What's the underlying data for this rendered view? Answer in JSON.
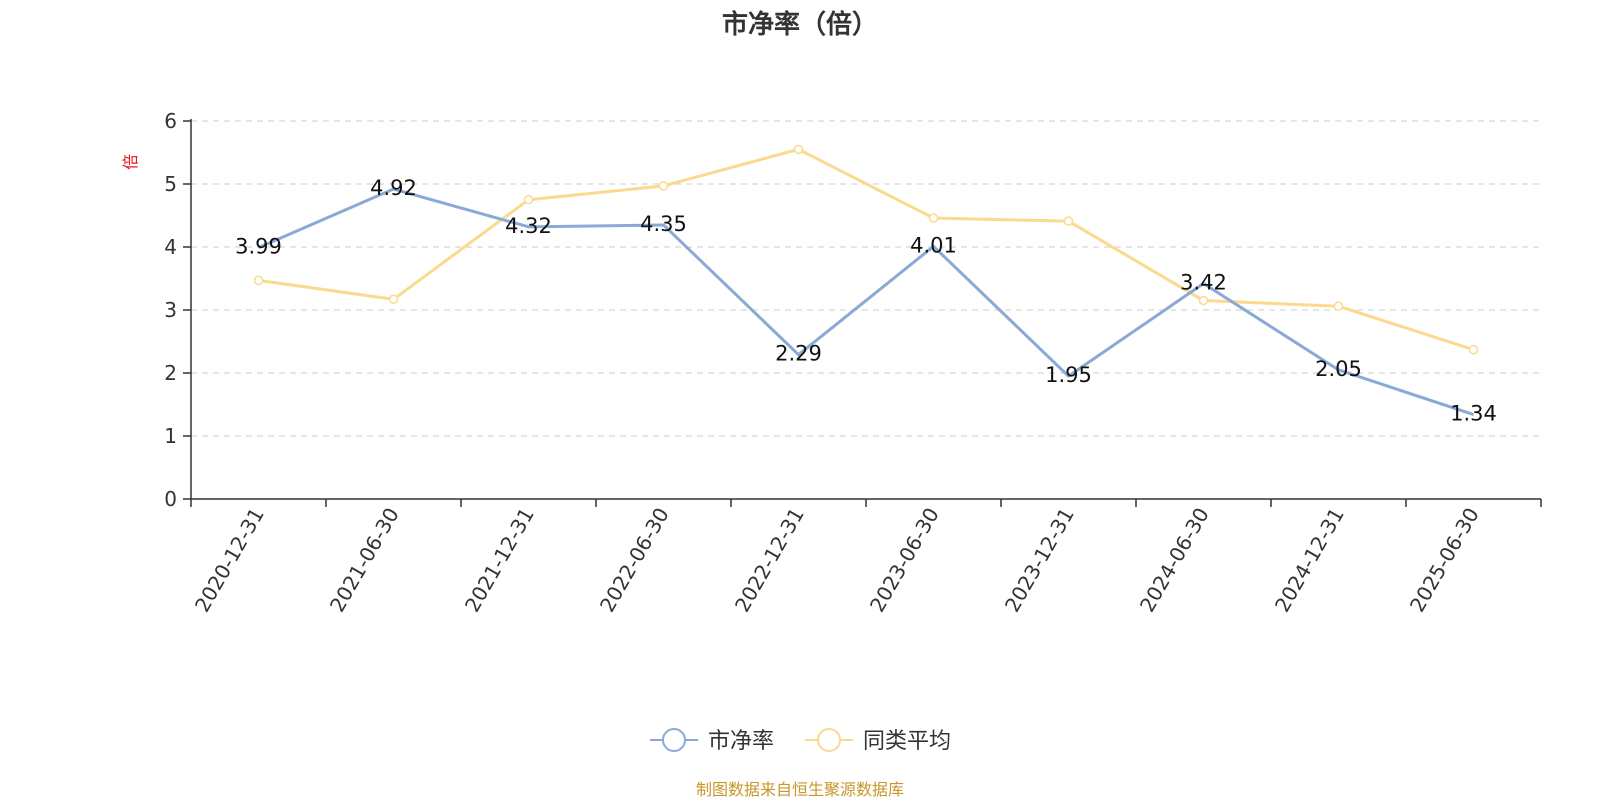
{
  "colors": {
    "series1": "#8aa9d6",
    "series2": "#fbd98f",
    "grid": "#cccccc",
    "axis": "#333333",
    "unit": "#e8141e",
    "source": "#c8962a"
  },
  "chart_data": {
    "type": "line",
    "title": "市净率（倍）",
    "y_unit": "倍",
    "ylim": [
      0,
      6
    ],
    "yticks": [
      0,
      1,
      2,
      3,
      4,
      5,
      6
    ],
    "grid": true,
    "legend_position": "bottom-center",
    "categories": [
      "2020-12-31",
      "2021-06-30",
      "2021-12-31",
      "2022-06-30",
      "2022-12-31",
      "2023-06-30",
      "2023-12-31",
      "2024-06-30",
      "2024-12-31",
      "2025-06-30"
    ],
    "series": [
      {
        "name": "市净率",
        "values": [
          3.99,
          4.92,
          4.32,
          4.35,
          2.29,
          4.01,
          1.95,
          3.42,
          2.05,
          1.34
        ],
        "labels": [
          "3.99",
          "4.92",
          "4.32",
          "4.35",
          "2.29",
          "4.01",
          "1.95",
          "3.42",
          "2.05",
          "1.34"
        ]
      },
      {
        "name": "同类平均",
        "values": [
          3.47,
          3.17,
          4.75,
          4.97,
          5.55,
          4.46,
          4.41,
          3.15,
          3.06,
          2.37
        ]
      }
    ],
    "source_note": "制图数据来自恒生聚源数据库"
  }
}
